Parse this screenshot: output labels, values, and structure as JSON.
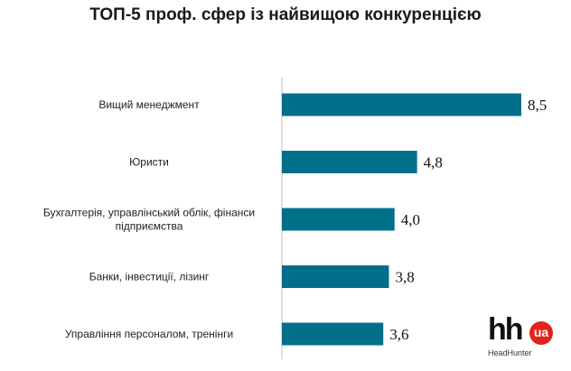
{
  "chart_data": {
    "type": "bar",
    "orientation": "horizontal",
    "title": "ТОП-5 проф. сфер із найвищою конкуренцією",
    "categories": [
      "Вищий менеджмент",
      "Юристи",
      "Бухгалтерія, управлінський облік, фінанси підприємства",
      "Банки, інвестиції, лізинг",
      "Управління персоналом, тренінги"
    ],
    "category_lines": [
      [
        "Вищий менеджмент"
      ],
      [
        "Юристи"
      ],
      [
        "Бухгалтерія, управлінський облік, фінанси",
        "підприємства"
      ],
      [
        "Банки, інвестиції, лізинг"
      ],
      [
        "Управління персоналом, тренінги"
      ]
    ],
    "values": [
      8.5,
      4.8,
      4.0,
      3.8,
      3.6
    ],
    "value_labels": [
      "8,5",
      "4,8",
      "4,0",
      "3,8",
      "3,6"
    ],
    "xlim": [
      0,
      8.5
    ],
    "grid": false,
    "bar_color": "#006f8a"
  },
  "logo": {
    "main": "hh",
    "badge": "ua",
    "sub": "HeadHunter",
    "badge_color": "#e2231a"
  }
}
